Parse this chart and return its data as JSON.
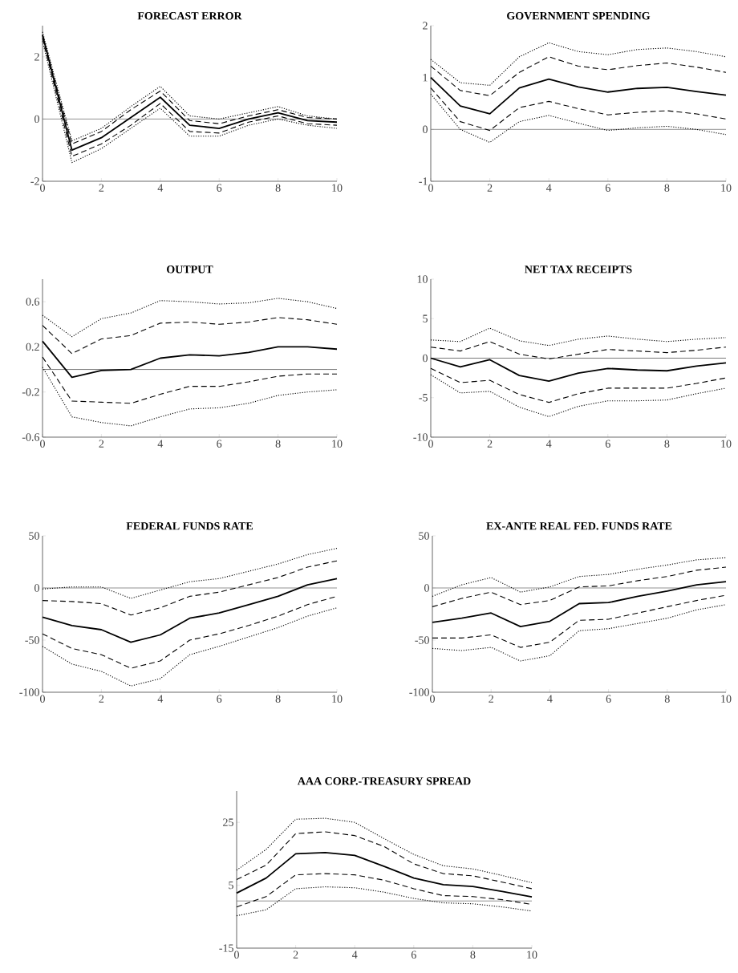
{
  "chart_data": [
    {
      "type": "line",
      "title": "FORECAST ERROR",
      "x": [
        0,
        1,
        2,
        3,
        4,
        5,
        6,
        7,
        8,
        9,
        10
      ],
      "xlim": [
        0,
        10
      ],
      "xticks": [
        0,
        2,
        4,
        6,
        8,
        10
      ],
      "ylim": [
        -2,
        3
      ],
      "yticks": [
        -2,
        0,
        2
      ],
      "series": [
        {
          "color": "#000000",
          "line_style": "solid",
          "values": [
            2.7,
            -1.0,
            -0.6,
            0.05,
            0.7,
            -0.2,
            -0.3,
            0.0,
            0.2,
            -0.05,
            -0.1
          ]
        },
        {
          "color": "#000000",
          "line_style": "dashed",
          "values": [
            2.7,
            -0.8,
            -0.4,
            0.3,
            0.9,
            -0.05,
            -0.15,
            0.1,
            0.3,
            0.05,
            0.0
          ]
        },
        {
          "color": "#000000",
          "line_style": "dashed",
          "values": [
            2.6,
            -1.2,
            -0.8,
            -0.2,
            0.5,
            -0.4,
            -0.45,
            -0.1,
            0.1,
            -0.15,
            -0.2
          ]
        },
        {
          "color": "#000000",
          "line_style": "dotted",
          "values": [
            2.8,
            -0.7,
            -0.3,
            0.4,
            1.05,
            0.1,
            0.0,
            0.2,
            0.4,
            0.1,
            0.0
          ]
        },
        {
          "color": "#000000",
          "line_style": "dotted",
          "values": [
            2.5,
            -1.4,
            -0.95,
            -0.3,
            0.35,
            -0.55,
            -0.55,
            -0.2,
            0.0,
            -0.2,
            -0.3
          ]
        }
      ],
      "ref_lines": [
        {
          "axis": "y",
          "value": 0,
          "color": "#777777"
        }
      ]
    },
    {
      "type": "line",
      "title": "GOVERNMENT SPENDING",
      "x": [
        0,
        1,
        2,
        3,
        4,
        5,
        6,
        7,
        8,
        9,
        10
      ],
      "xlim": [
        0,
        10
      ],
      "xticks": [
        0,
        2,
        4,
        6,
        8,
        10
      ],
      "ylim": [
        -1,
        2
      ],
      "yticks": [
        -1,
        0,
        1,
        2
      ],
      "series": [
        {
          "color": "#000000",
          "line_style": "solid",
          "values": [
            1.0,
            0.45,
            0.3,
            0.8,
            0.97,
            0.82,
            0.72,
            0.79,
            0.81,
            0.73,
            0.66
          ]
        },
        {
          "color": "#000000",
          "line_style": "dashed",
          "values": [
            1.22,
            0.75,
            0.65,
            1.1,
            1.4,
            1.22,
            1.15,
            1.23,
            1.28,
            1.2,
            1.1
          ]
        },
        {
          "color": "#000000",
          "line_style": "dashed",
          "values": [
            0.8,
            0.15,
            -0.02,
            0.42,
            0.54,
            0.4,
            0.28,
            0.33,
            0.36,
            0.3,
            0.2
          ]
        },
        {
          "color": "#000000",
          "line_style": "dotted",
          "values": [
            1.35,
            0.9,
            0.85,
            1.4,
            1.67,
            1.5,
            1.44,
            1.54,
            1.57,
            1.5,
            1.4
          ]
        },
        {
          "color": "#000000",
          "line_style": "dotted",
          "values": [
            0.68,
            0.0,
            -0.25,
            0.15,
            0.27,
            0.12,
            -0.02,
            0.03,
            0.06,
            0.0,
            -0.1
          ]
        }
      ],
      "ref_lines": [
        {
          "axis": "y",
          "value": 0,
          "color": "#777777"
        }
      ]
    },
    {
      "type": "line",
      "title": "OUTPUT",
      "x": [
        0,
        1,
        2,
        3,
        4,
        5,
        6,
        7,
        8,
        9,
        10
      ],
      "xlim": [
        0,
        10
      ],
      "xticks": [
        0,
        2,
        4,
        6,
        8,
        10
      ],
      "ylim": [
        -0.6,
        0.8
      ],
      "yticks": [
        -0.6,
        -0.2,
        0.2,
        0.6
      ],
      "series": [
        {
          "color": "#000000",
          "line_style": "solid",
          "values": [
            0.25,
            -0.07,
            -0.01,
            0.0,
            0.1,
            0.13,
            0.12,
            0.15,
            0.2,
            0.2,
            0.18
          ]
        },
        {
          "color": "#000000",
          "line_style": "dashed",
          "values": [
            0.39,
            0.14,
            0.27,
            0.3,
            0.41,
            0.42,
            0.4,
            0.42,
            0.46,
            0.44,
            0.4
          ]
        },
        {
          "color": "#000000",
          "line_style": "dashed",
          "values": [
            0.11,
            -0.28,
            -0.29,
            -0.3,
            -0.22,
            -0.15,
            -0.15,
            -0.11,
            -0.06,
            -0.04,
            -0.04
          ]
        },
        {
          "color": "#000000",
          "line_style": "dotted",
          "values": [
            0.48,
            0.29,
            0.45,
            0.5,
            0.61,
            0.6,
            0.58,
            0.59,
            0.63,
            0.6,
            0.54
          ]
        },
        {
          "color": "#000000",
          "line_style": "dotted",
          "values": [
            0.02,
            -0.42,
            -0.47,
            -0.5,
            -0.42,
            -0.35,
            -0.34,
            -0.3,
            -0.23,
            -0.2,
            -0.18
          ]
        }
      ],
      "ref_lines": [
        {
          "axis": "y",
          "value": 0,
          "color": "#555555"
        }
      ]
    },
    {
      "type": "line",
      "title": "NET TAX RECEIPTS",
      "x": [
        0,
        1,
        2,
        3,
        4,
        5,
        6,
        7,
        8,
        9,
        10
      ],
      "xlim": [
        0,
        10
      ],
      "xticks": [
        0,
        2,
        4,
        6,
        8,
        10
      ],
      "ylim": [
        -10,
        10
      ],
      "yticks": [
        -10,
        -5,
        0,
        5,
        10
      ],
      "series": [
        {
          "color": "#000000",
          "line_style": "solid",
          "values": [
            0.0,
            -1.1,
            -0.2,
            -2.2,
            -2.9,
            -1.9,
            -1.3,
            -1.5,
            -1.6,
            -1.0,
            -0.6
          ]
        },
        {
          "color": "#000000",
          "line_style": "dashed",
          "values": [
            1.4,
            0.9,
            2.1,
            0.5,
            -0.1,
            0.5,
            1.1,
            0.9,
            0.7,
            1.0,
            1.4
          ]
        },
        {
          "color": "#000000",
          "line_style": "dashed",
          "values": [
            -1.3,
            -3.1,
            -2.8,
            -4.6,
            -5.6,
            -4.5,
            -3.8,
            -3.8,
            -3.8,
            -3.2,
            -2.5
          ]
        },
        {
          "color": "#000000",
          "line_style": "dotted",
          "values": [
            2.3,
            2.1,
            3.8,
            2.2,
            1.6,
            2.4,
            2.8,
            2.4,
            2.1,
            2.4,
            2.6
          ]
        },
        {
          "color": "#000000",
          "line_style": "dotted",
          "values": [
            -2.1,
            -4.4,
            -4.2,
            -6.2,
            -7.4,
            -6.1,
            -5.4,
            -5.4,
            -5.3,
            -4.5,
            -3.8
          ]
        }
      ],
      "ref_lines": [
        {
          "axis": "y",
          "value": 0,
          "color": "#555555"
        }
      ]
    },
    {
      "type": "line",
      "title": "FEDERAL FUNDS RATE",
      "x": [
        0,
        1,
        2,
        3,
        4,
        5,
        6,
        7,
        8,
        9,
        10
      ],
      "xlim": [
        0,
        10
      ],
      "xticks": [
        0,
        2,
        4,
        6,
        8,
        10
      ],
      "ylim": [
        -100,
        50
      ],
      "yticks": [
        -100,
        -50,
        0,
        50
      ],
      "series": [
        {
          "color": "#000000",
          "line_style": "solid",
          "values": [
            -28,
            -36,
            -40,
            -52,
            -45,
            -29,
            -24,
            -16,
            -8,
            3,
            9
          ]
        },
        {
          "color": "#000000",
          "line_style": "dashed",
          "values": [
            -12,
            -13,
            -15,
            -26,
            -19,
            -8,
            -4,
            3,
            10,
            20,
            26
          ]
        },
        {
          "color": "#000000",
          "line_style": "dashed",
          "values": [
            -44,
            -58,
            -64,
            -77,
            -70,
            -50,
            -44,
            -36,
            -27,
            -16,
            -8
          ]
        },
        {
          "color": "#000000",
          "line_style": "dotted",
          "values": [
            -1,
            1,
            1,
            -10,
            -2,
            6,
            9,
            16,
            23,
            32,
            38
          ]
        },
        {
          "color": "#000000",
          "line_style": "dotted",
          "values": [
            -56,
            -73,
            -80,
            -94,
            -87,
            -64,
            -56,
            -47,
            -38,
            -27,
            -19
          ]
        }
      ],
      "ref_lines": [
        {
          "axis": "y",
          "value": 0,
          "color": "#777777"
        }
      ]
    },
    {
      "type": "line",
      "title": "EX-ANTE REAL FED. FUNDS RATE",
      "x": [
        0,
        1,
        2,
        3,
        4,
        5,
        6,
        7,
        8,
        9,
        10
      ],
      "xlim": [
        0,
        10
      ],
      "xticks": [
        0,
        2,
        4,
        6,
        8,
        10
      ],
      "ylim": [
        -100,
        50
      ],
      "yticks": [
        -100,
        -50,
        0,
        50
      ],
      "series": [
        {
          "color": "#000000",
          "line_style": "solid",
          "values": [
            -33,
            -29,
            -24,
            -37,
            -32,
            -15,
            -14,
            -8,
            -3,
            3,
            6
          ]
        },
        {
          "color": "#000000",
          "line_style": "dashed",
          "values": [
            -18,
            -10,
            -4,
            -16,
            -12,
            1,
            2,
            7,
            11,
            17,
            20
          ]
        },
        {
          "color": "#000000",
          "line_style": "dashed",
          "values": [
            -48,
            -48,
            -45,
            -57,
            -52,
            -31,
            -30,
            -24,
            -18,
            -12,
            -7
          ]
        },
        {
          "color": "#000000",
          "line_style": "dotted",
          "values": [
            -8,
            3,
            10,
            -4,
            1,
            11,
            13,
            18,
            22,
            27,
            29
          ]
        },
        {
          "color": "#000000",
          "line_style": "dotted",
          "values": [
            -58,
            -60,
            -57,
            -70,
            -65,
            -41,
            -39,
            -34,
            -29,
            -21,
            -16
          ]
        }
      ],
      "ref_lines": [
        {
          "axis": "y",
          "value": 0,
          "color": "#777777"
        }
      ]
    },
    {
      "type": "line",
      "title": "AAA CORP.-TREASURY SPREAD",
      "x": [
        0,
        1,
        2,
        3,
        4,
        5,
        6,
        7,
        8,
        9,
        10
      ],
      "xlim": [
        0,
        10
      ],
      "xticks": [
        0,
        2,
        4,
        6,
        8,
        10
      ],
      "ylim": [
        -15,
        35
      ],
      "yticks": [
        -15,
        5,
        25
      ],
      "series": [
        {
          "color": "#000000",
          "line_style": "solid",
          "values": [
            2.5,
            7.3,
            15,
            15.4,
            14.5,
            11,
            7.3,
            5.2,
            4.6,
            3,
            1.3
          ]
        },
        {
          "color": "#000000",
          "line_style": "dashed",
          "values": [
            6.8,
            11.4,
            21.4,
            22,
            20.8,
            17.3,
            11.8,
            8.7,
            8,
            6,
            3.9
          ]
        },
        {
          "color": "#000000",
          "line_style": "dashed",
          "values": [
            -1.9,
            1.4,
            8.3,
            8.7,
            8.3,
            6.6,
            3.9,
            1.7,
            1.4,
            0.4,
            -1.1
          ]
        },
        {
          "color": "#000000",
          "line_style": "dotted",
          "values": [
            9.8,
            16.4,
            26,
            26.3,
            25,
            19.8,
            14.8,
            11.2,
            10.2,
            8.1,
            5.8
          ]
        },
        {
          "color": "#000000",
          "line_style": "dotted",
          "values": [
            -4.7,
            -2.8,
            3.9,
            4.5,
            4.2,
            2.8,
            0.8,
            -0.6,
            -0.9,
            -1.9,
            -3.2
          ]
        }
      ],
      "ref_lines": [
        {
          "axis": "y",
          "value": 0,
          "color": "#777777"
        }
      ]
    }
  ]
}
